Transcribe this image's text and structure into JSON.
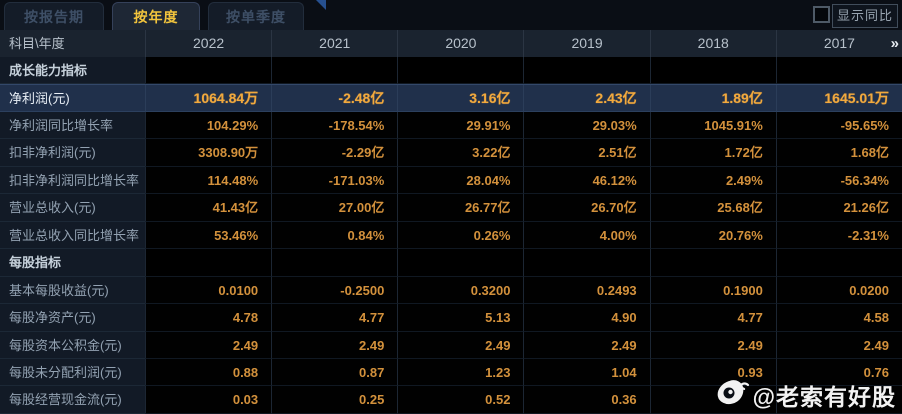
{
  "tabs": [
    {
      "label": "按报告期",
      "active": false
    },
    {
      "label": "按年度",
      "active": true
    },
    {
      "label": "按单季度",
      "active": false
    }
  ],
  "controls": {
    "show_yoy_label": "显示同比",
    "show_yoy_checked": false
  },
  "table": {
    "corner_header": "科目\\年度",
    "year_columns": [
      "2022",
      "2021",
      "2020",
      "2019",
      "2018",
      "2017"
    ],
    "more_years_icon": "»",
    "rows": [
      {
        "label": "成长能力指标",
        "type": "section",
        "values": [
          "",
          "",
          "",
          "",
          "",
          ""
        ]
      },
      {
        "label": "净利润(元)",
        "type": "highlight",
        "values": [
          "1064.84万",
          "-2.48亿",
          "3.16亿",
          "2.43亿",
          "1.89亿",
          "1645.01万"
        ]
      },
      {
        "label": "净利润同比增长率",
        "type": "data",
        "values": [
          "104.29%",
          "-178.54%",
          "29.91%",
          "29.03%",
          "1045.91%",
          "-95.65%"
        ]
      },
      {
        "label": "扣非净利润(元)",
        "type": "data",
        "values": [
          "3308.90万",
          "-2.29亿",
          "3.22亿",
          "2.51亿",
          "1.72亿",
          "1.68亿"
        ]
      },
      {
        "label": "扣非净利润同比增长率",
        "type": "data",
        "values": [
          "114.48%",
          "-171.03%",
          "28.04%",
          "46.12%",
          "2.49%",
          "-56.34%"
        ]
      },
      {
        "label": "营业总收入(元)",
        "type": "data",
        "values": [
          "41.43亿",
          "27.00亿",
          "26.77亿",
          "26.70亿",
          "25.68亿",
          "21.26亿"
        ]
      },
      {
        "label": "营业总收入同比增长率",
        "type": "data",
        "values": [
          "53.46%",
          "0.84%",
          "0.26%",
          "4.00%",
          "20.76%",
          "-2.31%"
        ]
      },
      {
        "label": "每股指标",
        "type": "section",
        "values": [
          "",
          "",
          "",
          "",
          "",
          ""
        ]
      },
      {
        "label": "基本每股收益(元)",
        "type": "data",
        "values": [
          "0.0100",
          "-0.2500",
          "0.3200",
          "0.2493",
          "0.1900",
          "0.0200"
        ]
      },
      {
        "label": "每股净资产(元)",
        "type": "data",
        "values": [
          "4.78",
          "4.77",
          "5.13",
          "4.90",
          "4.77",
          "4.58"
        ]
      },
      {
        "label": "每股资本公积金(元)",
        "type": "data",
        "values": [
          "2.49",
          "2.49",
          "2.49",
          "2.49",
          "2.49",
          "2.49"
        ]
      },
      {
        "label": "每股未分配利润(元)",
        "type": "data",
        "values": [
          "0.88",
          "0.87",
          "1.23",
          "1.04",
          "0.93",
          "0.76"
        ]
      },
      {
        "label": "每股经营现金流(元)",
        "type": "data",
        "values": [
          "0.03",
          "0.25",
          "0.52",
          "0.36",
          "",
          ""
        ]
      }
    ]
  },
  "watermark": {
    "text": "@老索有好股",
    "icon": "weibo-icon"
  },
  "colors": {
    "background": "#0a0e15",
    "active_tab_text": "#f2c43d",
    "value_orange": "#d3913c",
    "highlight_row_bg": "#20304b",
    "header_row_bg": "#1a232f",
    "label_col_bg": "#121a26"
  }
}
